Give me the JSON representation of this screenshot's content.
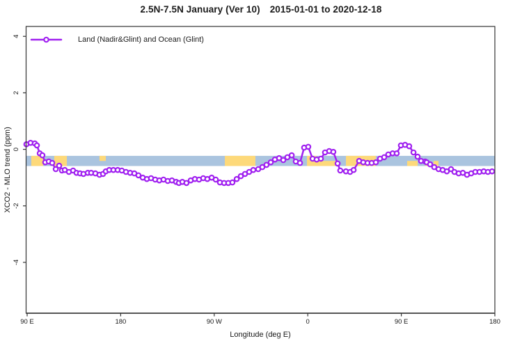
{
  "title": {
    "main": "2.5N-7.5N January (Ver 10)",
    "dates": "2015-01-01 to 2020-12-18"
  },
  "legend": {
    "label": "Land (Nadir&Glint) and Ocean (Glint)"
  },
  "colors": {
    "series": "#A020F0",
    "marker_fill": "#FFFFFF",
    "band_blue": "#AAC4DF",
    "band_orange": "#FDD97A",
    "axis_box": "#333333",
    "axis_bottom": "#555555",
    "text": "#1a1a1a"
  },
  "chart_data": {
    "type": "line",
    "title": "2.5N-7.5N January (Ver 10)  2015-01-01 to 2020-12-18",
    "xlabel": "Longitude (deg E)",
    "ylabel": "XCO2 - MLO trend (ppm)",
    "xlim": [
      89,
      540
    ],
    "ylim": [
      -5.8,
      4.35
    ],
    "grid": false,
    "legend_position": "top-left",
    "x_ticks": [
      {
        "value": 90,
        "label": "90 E"
      },
      {
        "value": 180,
        "label": "180"
      },
      {
        "value": 270,
        "label": "90 W"
      },
      {
        "value": 360,
        "label": "0"
      },
      {
        "value": 450,
        "label": "90 E"
      },
      {
        "value": 540,
        "label": "180"
      }
    ],
    "y_ticks": [
      {
        "value": 4,
        "label": "4"
      },
      {
        "value": 2,
        "label": "2"
      },
      {
        "value": 0,
        "label": "0"
      },
      {
        "value": -2,
        "label": "-2"
      },
      {
        "value": -4,
        "label": "-4"
      }
    ],
    "reference_band": {
      "y_from": -0.59,
      "y_to": -0.23,
      "base_color_name": "ocean-blue",
      "overlay_color_name": "land-orange",
      "overlay_segments": [
        {
          "from": 94.0,
          "to": 105.4,
          "part": "full"
        },
        {
          "from": 116.1,
          "to": 128.2,
          "part": "full"
        },
        {
          "from": 159.6,
          "to": 165.7,
          "part": "top"
        },
        {
          "from": 280.2,
          "to": 309.6,
          "part": "full"
        },
        {
          "from": 359.2,
          "to": 368.6,
          "part": "full"
        },
        {
          "from": 368.6,
          "to": 388.7,
          "part": "bottom"
        },
        {
          "from": 396.7,
          "to": 425.5,
          "part": "full"
        },
        {
          "from": 455.6,
          "to": 465.7,
          "part": "bottom"
        },
        {
          "from": 473.0,
          "to": 476.4,
          "part": "bottom"
        },
        {
          "from": 481.0,
          "to": 485.8,
          "part": "bottom"
        }
      ]
    },
    "series": [
      {
        "name": "Land (Nadir&Glint) and Ocean (Glint)",
        "marker": "open-circle",
        "x": [
          89.3,
          93.3,
          97.4,
          99.4,
          102.1,
          104.7,
          107.4,
          110.8,
          114.1,
          117.5,
          120.8,
          123.5,
          126.2,
          130.2,
          134.2,
          137.5,
          140.9,
          144.2,
          148.3,
          151.6,
          155.6,
          159.6,
          163.0,
          165.7,
          169.0,
          173.0,
          177.1,
          181.1,
          185.1,
          189.1,
          193.1,
          197.1,
          201.2,
          205.2,
          209.2,
          213.2,
          217.2,
          221.2,
          225.3,
          229.3,
          233.3,
          236.0,
          239.3,
          243.3,
          247.4,
          251.4,
          255.4,
          259.4,
          263.4,
          267.5,
          271.5,
          275.5,
          279.5,
          283.5,
          287.5,
          291.6,
          295.6,
          299.6,
          303.6,
          307.6,
          312.3,
          316.3,
          320.3,
          324.4,
          328.4,
          332.4,
          336.4,
          340.4,
          344.5,
          348.5,
          352.5,
          356.5,
          360.5,
          364.6,
          368.6,
          372.6,
          376.6,
          380.6,
          384.6,
          388.7,
          391.3,
          396.7,
          400.7,
          404.1,
          409.4,
          413.4,
          417.5,
          421.5,
          425.5,
          429.5,
          433.5,
          437.5,
          441.6,
          445.6,
          449.6,
          453.6,
          457.6,
          461.7,
          465.7,
          469.0,
          473.0,
          474.4,
          477.7,
          481.7,
          485.8,
          489.8,
          493.8,
          497.8,
          501.1,
          505.2,
          509.2,
          513.2,
          517.2,
          521.2,
          525.2,
          529.3,
          533.3,
          537.3
        ],
        "y": [
          0.18,
          0.23,
          0.21,
          0.14,
          -0.14,
          -0.21,
          -0.46,
          -0.43,
          -0.48,
          -0.7,
          -0.58,
          -0.75,
          -0.73,
          -0.8,
          -0.75,
          -0.83,
          -0.85,
          -0.87,
          -0.83,
          -0.83,
          -0.85,
          -0.9,
          -0.87,
          -0.78,
          -0.73,
          -0.73,
          -0.73,
          -0.75,
          -0.8,
          -0.83,
          -0.85,
          -0.92,
          -1.0,
          -1.05,
          -1.02,
          -1.07,
          -1.1,
          -1.07,
          -1.12,
          -1.1,
          -1.15,
          -1.19,
          -1.15,
          -1.19,
          -1.1,
          -1.05,
          -1.07,
          -1.02,
          -1.05,
          -1.0,
          -1.07,
          -1.17,
          -1.19,
          -1.19,
          -1.17,
          -1.05,
          -0.95,
          -0.87,
          -0.8,
          -0.73,
          -0.7,
          -0.63,
          -0.55,
          -0.46,
          -0.36,
          -0.31,
          -0.38,
          -0.28,
          -0.21,
          -0.43,
          -0.48,
          0.06,
          0.09,
          -0.33,
          -0.36,
          -0.33,
          -0.11,
          -0.06,
          -0.09,
          -0.5,
          -0.75,
          -0.78,
          -0.8,
          -0.73,
          -0.41,
          -0.46,
          -0.48,
          -0.48,
          -0.46,
          -0.33,
          -0.28,
          -0.18,
          -0.14,
          -0.14,
          0.14,
          0.16,
          0.11,
          -0.11,
          -0.26,
          -0.41,
          -0.43,
          -0.46,
          -0.53,
          -0.63,
          -0.7,
          -0.73,
          -0.78,
          -0.7,
          -0.8,
          -0.85,
          -0.83,
          -0.9,
          -0.85,
          -0.8,
          -0.8,
          -0.78,
          -0.8,
          -0.78
        ]
      }
    ]
  }
}
